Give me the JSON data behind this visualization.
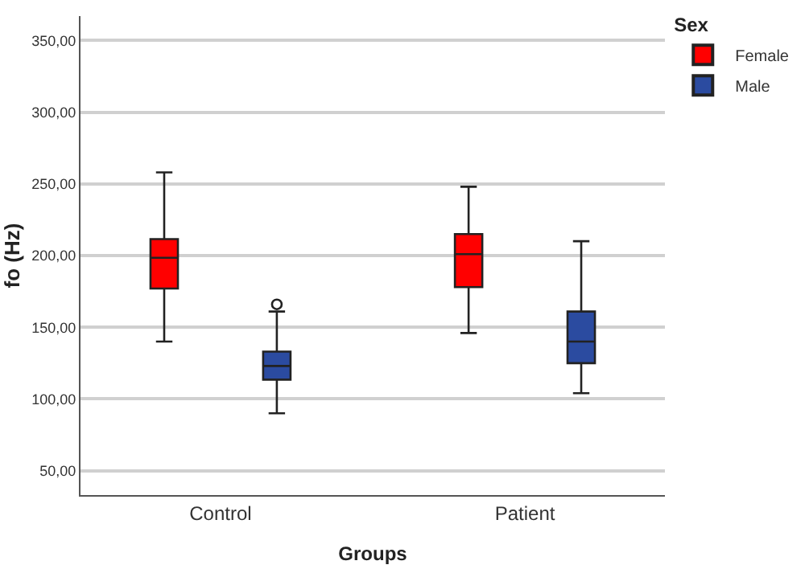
{
  "chart_data": {
    "type": "box",
    "xlabel": "Groups",
    "ylabel": "fo (Hz)",
    "legend_title": "Sex",
    "categories": [
      "Control",
      "Patient"
    ],
    "series": [
      {
        "name": "Female",
        "color": "#ff0000",
        "boxes": [
          {
            "low": 140,
            "q1": 177,
            "median": 198.5,
            "q3": 211.5,
            "high": 258
          },
          {
            "low": 146,
            "q1": 178,
            "median": 201,
            "q3": 215,
            "high": 248
          }
        ]
      },
      {
        "name": "Male",
        "color": "#2b4ba0",
        "boxes": [
          {
            "low": 90,
            "q1": 113.5,
            "median": 123,
            "q3": 133,
            "high": 161,
            "outliers": [
              166
            ]
          },
          {
            "low": 104,
            "q1": 125,
            "median": 140,
            "q3": 161,
            "high": 210
          }
        ]
      }
    ],
    "ylim": [
      33,
      367
    ],
    "yticks": [
      {
        "value": 50,
        "label": "50,00"
      },
      {
        "value": 100,
        "label": "100,00"
      },
      {
        "value": 150,
        "label": "150,00"
      },
      {
        "value": 200,
        "label": "200,00"
      },
      {
        "value": 250,
        "label": "250,00"
      },
      {
        "value": 300,
        "label": "300,00"
      },
      {
        "value": 350,
        "label": "350,00"
      }
    ],
    "grid": "y",
    "legend": "top right"
  }
}
